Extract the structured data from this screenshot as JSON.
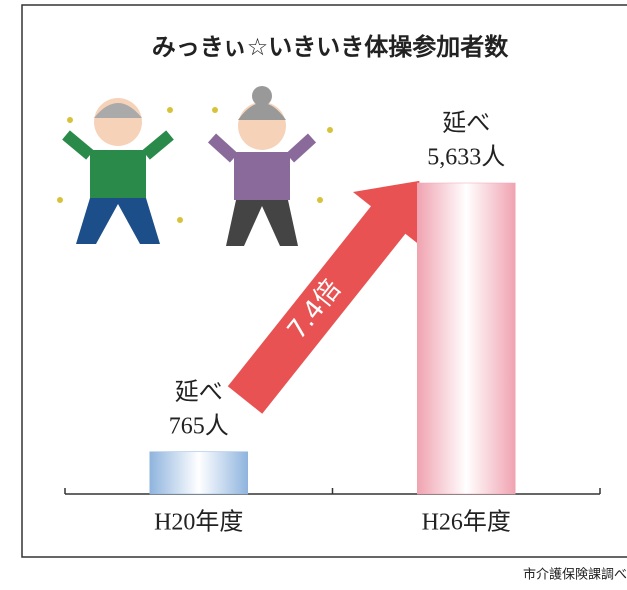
{
  "chart_data": {
    "type": "bar",
    "title": "みっきぃ☆いきいき体操参加者数",
    "categories": [
      "H20年度",
      "H26年度"
    ],
    "values": [
      765,
      5633
    ],
    "value_labels": [
      "765人",
      "5,633人"
    ],
    "value_prefixes": [
      "延べ",
      "延べ"
    ],
    "colors": [
      "#8fb4de",
      "#f0a3b1"
    ],
    "ylim": [
      0,
      5633
    ],
    "annotation": "7.4倍",
    "source": "市介護保険課調べ"
  }
}
